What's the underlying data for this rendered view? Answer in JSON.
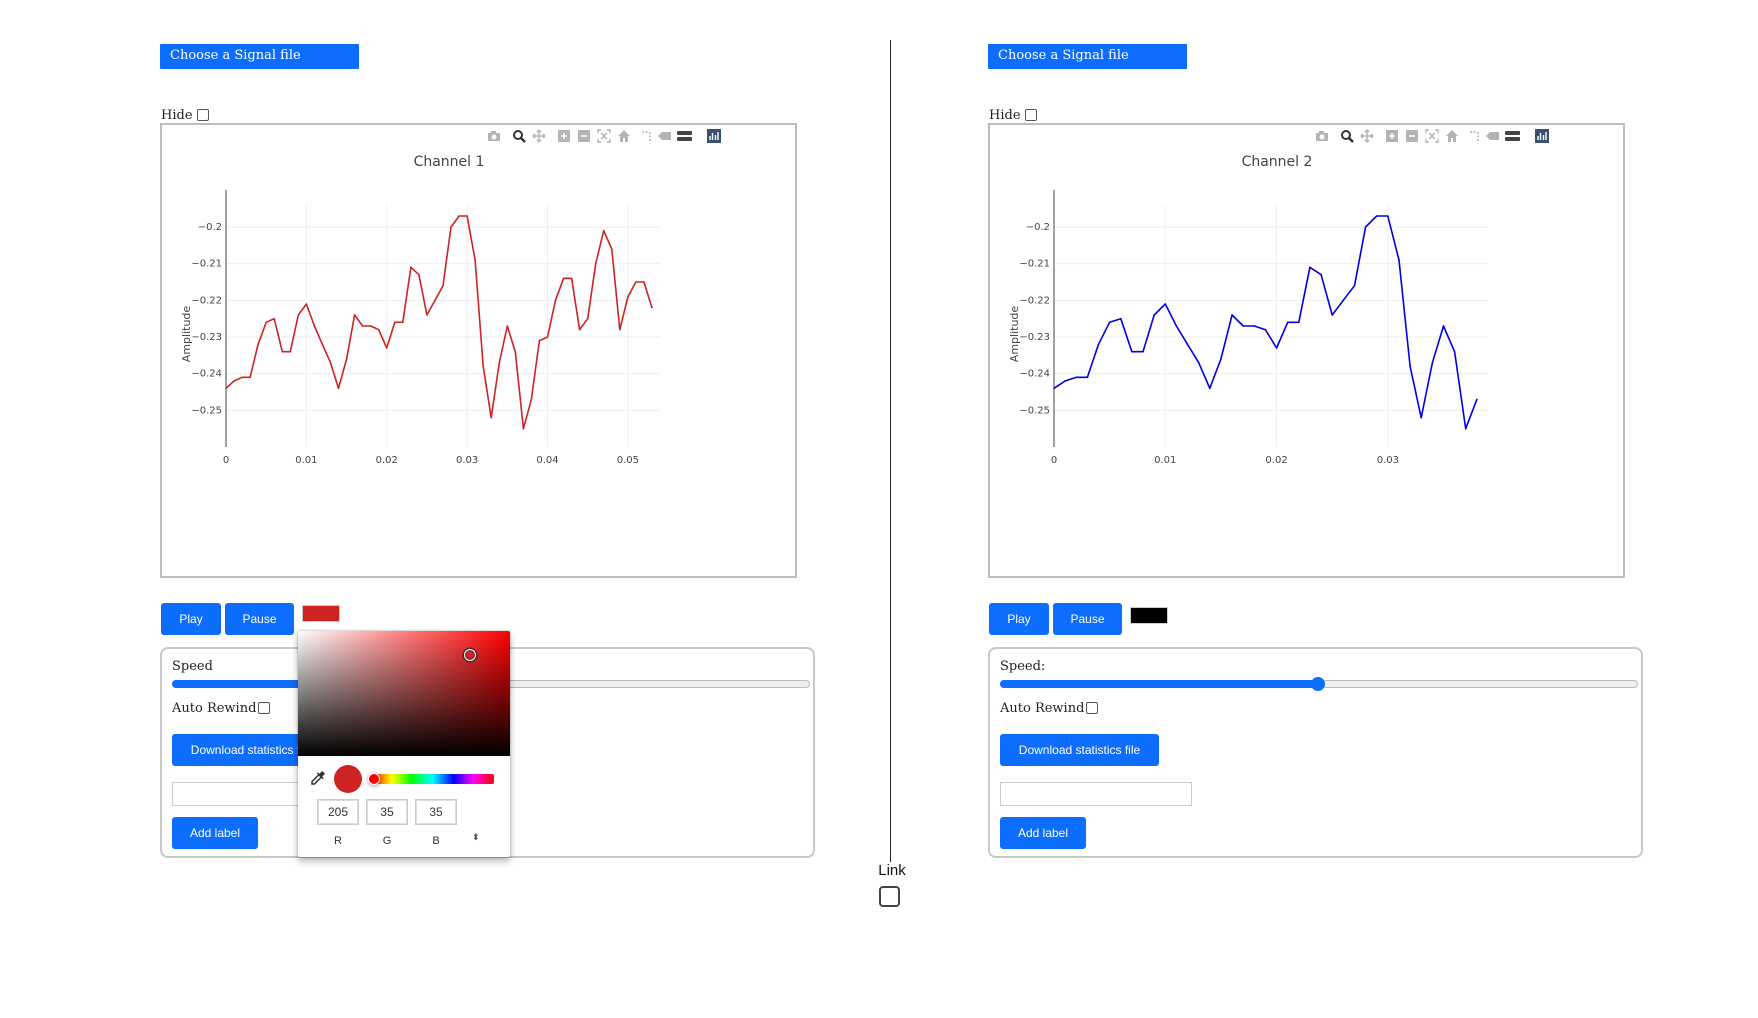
{
  "left": {
    "choose_label": "Choose a Signal file",
    "hide_label": "Hide",
    "chart_title": "Channel 1",
    "play_label": "Play",
    "pause_label": "Pause",
    "swatch_color": "#cd2323",
    "speed_label": "Speed",
    "speed_fraction": 0.5,
    "auto_rewind_label": "Auto Rewind",
    "download_label": "Download statistics file",
    "label_input_value": "",
    "add_label": "Add label"
  },
  "right": {
    "choose_label": "Choose a Signal file",
    "hide_label": "Hide",
    "chart_title": "Channel 2",
    "play_label": "Play",
    "pause_label": "Pause",
    "swatch_color": "#000000",
    "speed_label": "Speed:",
    "speed_fraction": 0.5,
    "auto_rewind_label": "Auto Rewind",
    "download_label": "Download statistics file",
    "label_input_value": "",
    "add_label": "Add label"
  },
  "link_label": "Link",
  "toolbar_icons": [
    "camera-icon",
    "zoom-icon",
    "pan-icon",
    "zoom-in-icon",
    "zoom-out-icon",
    "autoscale-icon",
    "home-icon",
    "spike-lines-icon",
    "hover-closest-icon",
    "hover-compare-icon",
    "plotly-logo-icon"
  ],
  "color_picker": {
    "hue_color": "#ff0000",
    "selected_color": "#cd2323",
    "r": "205",
    "g": "35",
    "b": "35",
    "r_label": "R",
    "g_label": "G",
    "b_label": "B",
    "toggle_glyph": "⬍"
  },
  "chart_data": [
    {
      "type": "line",
      "title": "Channel 1",
      "xlabel": "",
      "ylabel": "Amplitude",
      "color": "#cd2323",
      "xlim": [
        0,
        0.054
      ],
      "ylim": [
        -0.26,
        -0.194
      ],
      "x_ticks": [
        0,
        0.01,
        0.02,
        0.03,
        0.04,
        0.05
      ],
      "x_tick_labels": [
        "0",
        "0.01",
        "0.02",
        "0.03",
        "0.04",
        "0.05"
      ],
      "y_ticks": [
        -0.2,
        -0.21,
        -0.22,
        -0.23,
        -0.24,
        -0.25
      ],
      "y_tick_labels": [
        "−0.2",
        "−0.21",
        "−0.22",
        "−0.23",
        "−0.24",
        "−0.25"
      ],
      "grid": true,
      "x": [
        0,
        0.001,
        0.002,
        0.003,
        0.004,
        0.005,
        0.006,
        0.007,
        0.008,
        0.009,
        0.01,
        0.011,
        0.012,
        0.013,
        0.014,
        0.015,
        0.016,
        0.017,
        0.018,
        0.019,
        0.02,
        0.021,
        0.022,
        0.023,
        0.024,
        0.025,
        0.026,
        0.027,
        0.028,
        0.029,
        0.03,
        0.031,
        0.032,
        0.033,
        0.034,
        0.035,
        0.036,
        0.037,
        0.038,
        0.039,
        0.04,
        0.041,
        0.042,
        0.043,
        0.044,
        0.045,
        0.046,
        0.047,
        0.048,
        0.049,
        0.05,
        0.051,
        0.052,
        0.053
      ],
      "y": [
        -0.244,
        -0.242,
        -0.241,
        -0.241,
        -0.232,
        -0.226,
        -0.225,
        -0.234,
        -0.234,
        -0.224,
        -0.221,
        -0.227,
        -0.232,
        -0.237,
        -0.244,
        -0.236,
        -0.224,
        -0.227,
        -0.227,
        -0.228,
        -0.233,
        -0.226,
        -0.226,
        -0.211,
        -0.213,
        -0.224,
        -0.22,
        -0.216,
        -0.2,
        -0.197,
        -0.197,
        -0.209,
        -0.238,
        -0.252,
        -0.237,
        -0.227,
        -0.234,
        -0.255,
        -0.247,
        -0.231,
        -0.23,
        -0.22,
        -0.214,
        -0.214,
        -0.228,
        -0.225,
        -0.21,
        -0.201,
        -0.206,
        -0.228,
        -0.219,
        -0.215,
        -0.215,
        -0.222
      ]
    },
    {
      "type": "line",
      "title": "Channel 2",
      "xlabel": "",
      "ylabel": "Amplitude",
      "color": "#0000e6",
      "xlim": [
        0,
        0.039
      ],
      "ylim": [
        -0.26,
        -0.194
      ],
      "x_ticks": [
        0,
        0.01,
        0.02,
        0.03
      ],
      "x_tick_labels": [
        "0",
        "0.01",
        "0.02",
        "0.03"
      ],
      "y_ticks": [
        -0.2,
        -0.21,
        -0.22,
        -0.23,
        -0.24,
        -0.25
      ],
      "y_tick_labels": [
        "−0.2",
        "−0.21",
        "−0.22",
        "−0.23",
        "−0.24",
        "−0.25"
      ],
      "grid": true,
      "x": [
        0,
        0.001,
        0.002,
        0.003,
        0.004,
        0.005,
        0.006,
        0.007,
        0.008,
        0.009,
        0.01,
        0.011,
        0.012,
        0.013,
        0.014,
        0.015,
        0.016,
        0.017,
        0.018,
        0.019,
        0.02,
        0.021,
        0.022,
        0.023,
        0.024,
        0.025,
        0.026,
        0.027,
        0.028,
        0.029,
        0.03,
        0.031,
        0.032,
        0.033,
        0.034,
        0.035,
        0.036,
        0.037,
        0.038
      ],
      "y": [
        -0.244,
        -0.242,
        -0.241,
        -0.241,
        -0.232,
        -0.226,
        -0.225,
        -0.234,
        -0.234,
        -0.224,
        -0.221,
        -0.227,
        -0.232,
        -0.237,
        -0.244,
        -0.236,
        -0.224,
        -0.227,
        -0.227,
        -0.228,
        -0.233,
        -0.226,
        -0.226,
        -0.211,
        -0.213,
        -0.224,
        -0.22,
        -0.216,
        -0.2,
        -0.197,
        -0.197,
        -0.209,
        -0.238,
        -0.252,
        -0.237,
        -0.227,
        -0.234,
        -0.255,
        -0.247
      ]
    }
  ]
}
